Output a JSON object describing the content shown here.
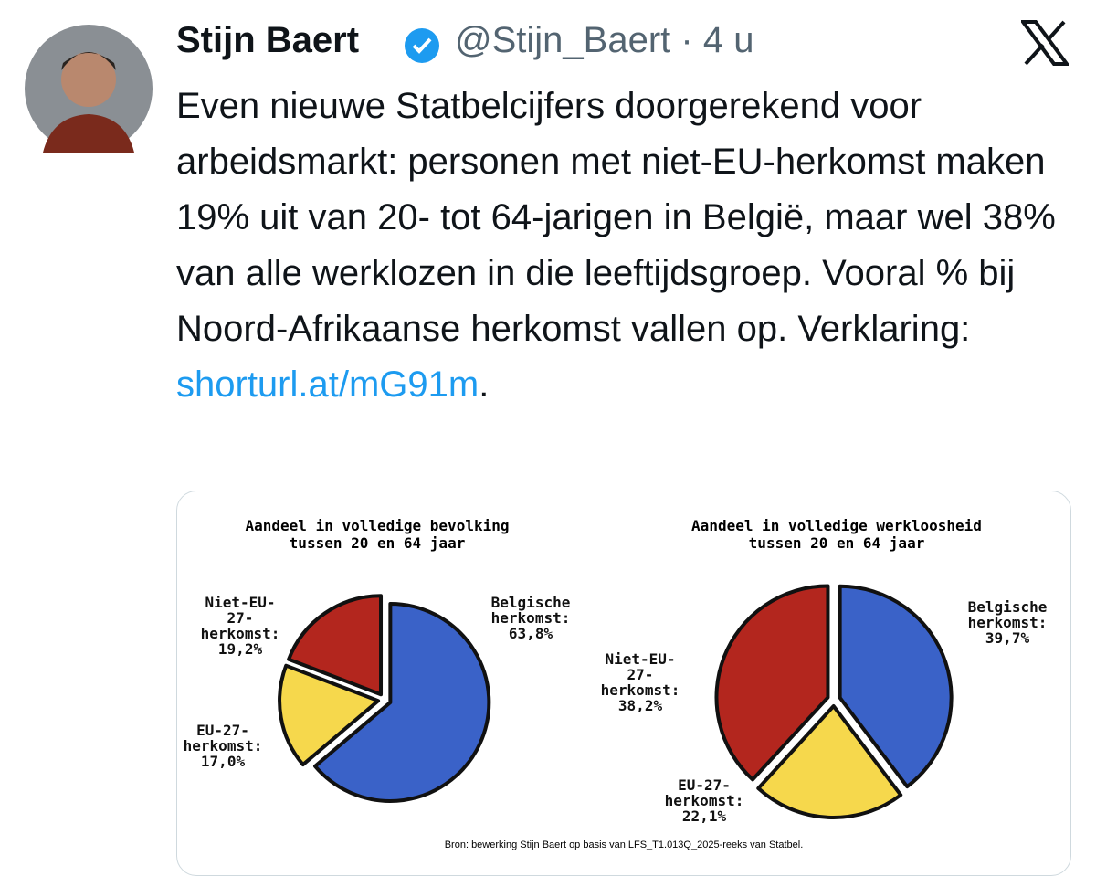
{
  "author": {
    "name": "Stijn Baert",
    "handle": "@Stijn_Baert",
    "separator": "·",
    "time": "4 u"
  },
  "post": {
    "text": "Even nieuwe Statbelcijfers doorgerekend voor arbeidsmarkt: personen met niet-EU-herkomst maken 19% uit van 20- tot 64-jarigen in België, maar wel 38% van alle werklozen in die leeftijdsgroep. Vooral % bij Noord-Afrikaanse herkomst vallen op. Verklaring: ",
    "link": "shorturl.at/mG91m",
    "text_end": "."
  },
  "source": "Bron: bewerking Stijn Baert op basis van LFS_T1.013Q_2025-reeks van Statbel.",
  "chart_data": [
    {
      "type": "pie",
      "title": "Aandeel in volledige bevolking",
      "subtitle": "tussen 20 en 64 jaar",
      "categories": [
        "Belgische herkomst:",
        "EU-27-herkomst:",
        "Niet-EU-27-herkomst:"
      ],
      "values": [
        63.8,
        17.0,
        19.2
      ],
      "value_labels": [
        "63,8%",
        "17,0%",
        "19,2%"
      ],
      "colors": [
        "#3a62c8",
        "#f6d84c",
        "#b3261e"
      ]
    },
    {
      "type": "pie",
      "title": "Aandeel in volledige werkloosheid",
      "subtitle": "tussen 20 en 64 jaar",
      "categories": [
        "Belgische herkomst:",
        "EU-27-herkomst:",
        "Niet-EU-27-herkomst:"
      ],
      "values": [
        39.7,
        22.1,
        38.2
      ],
      "value_labels": [
        "39,7%",
        "22,1%",
        "38,2%"
      ],
      "colors": [
        "#3a62c8",
        "#f6d84c",
        "#b3261e"
      ]
    }
  ]
}
